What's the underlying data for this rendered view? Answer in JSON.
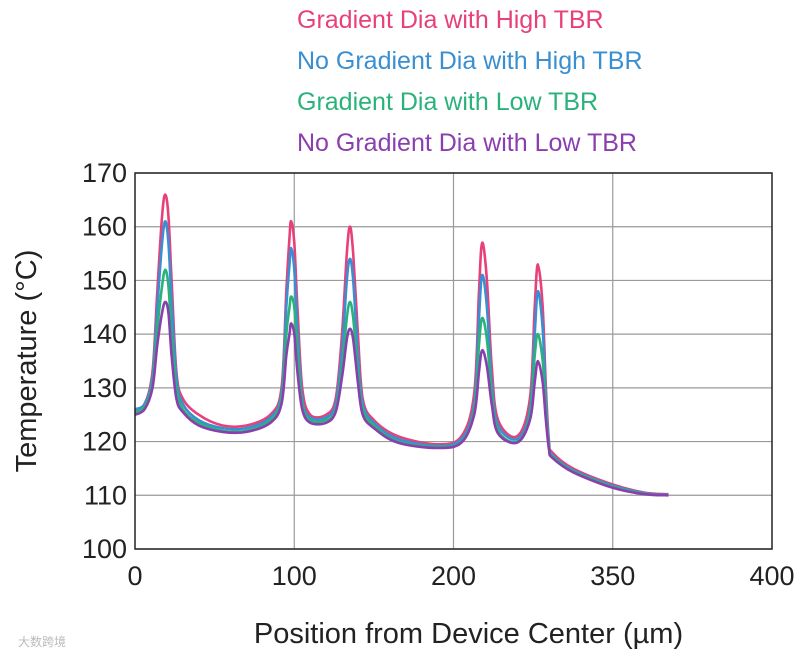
{
  "chart_data": {
    "type": "line",
    "xlabel": "Position from Device Center (µm)",
    "ylabel": "Temperature (°C)",
    "xlim": [
      0,
      400
    ],
    "ylim": [
      100,
      170
    ],
    "x_ticks": [
      0,
      100,
      200,
      350,
      400
    ],
    "y_ticks": [
      100,
      110,
      120,
      130,
      140,
      150,
      160,
      170
    ],
    "grid": true,
    "legend_position": "top",
    "watermark": "大数跨境",
    "series": [
      {
        "name": "Gradient Dia with High TBR",
        "color": "#e8407a",
        "points": [
          [
            0,
            126
          ],
          [
            6,
            127
          ],
          [
            11,
            133
          ],
          [
            14,
            148
          ],
          [
            17,
            162
          ],
          [
            19,
            166
          ],
          [
            21,
            162
          ],
          [
            23,
            150
          ],
          [
            26,
            133
          ],
          [
            30,
            128
          ],
          [
            40,
            125
          ],
          [
            55,
            123
          ],
          [
            70,
            123
          ],
          [
            85,
            125
          ],
          [
            92,
            130
          ],
          [
            95,
            148
          ],
          [
            97,
            158
          ],
          [
            98,
            161
          ],
          [
            100,
            157
          ],
          [
            102,
            145
          ],
          [
            105,
            130
          ],
          [
            110,
            125
          ],
          [
            120,
            125
          ],
          [
            126,
            128
          ],
          [
            130,
            140
          ],
          [
            133,
            155
          ],
          [
            135,
            160
          ],
          [
            137,
            155
          ],
          [
            140,
            140
          ],
          [
            143,
            128
          ],
          [
            150,
            124
          ],
          [
            165,
            121
          ],
          [
            190,
            119.5
          ],
          [
            205,
            121
          ],
          [
            213,
            129
          ],
          [
            216,
            148
          ],
          [
            218,
            157
          ],
          [
            221,
            150
          ],
          [
            224,
            134
          ],
          [
            228,
            124
          ],
          [
            240,
            121
          ],
          [
            248,
            128
          ],
          [
            251,
            145
          ],
          [
            253,
            153
          ],
          [
            256,
            145
          ],
          [
            258,
            130
          ],
          [
            260,
            120
          ],
          [
            262,
            118
          ],
          [
            275,
            115
          ],
          [
            300,
            112
          ],
          [
            320,
            110.5
          ],
          [
            335,
            110.2
          ]
        ]
      },
      {
        "name": "No Gradient Dia with High TBR",
        "color": "#3a8fd1",
        "points": [
          [
            0,
            126
          ],
          [
            6,
            127
          ],
          [
            11,
            132
          ],
          [
            14,
            145
          ],
          [
            17,
            157
          ],
          [
            19,
            161
          ],
          [
            21,
            157
          ],
          [
            23,
            146
          ],
          [
            26,
            132
          ],
          [
            30,
            127
          ],
          [
            40,
            124
          ],
          [
            55,
            122.5
          ],
          [
            70,
            122.5
          ],
          [
            85,
            124.5
          ],
          [
            92,
            129
          ],
          [
            95,
            145
          ],
          [
            97,
            153
          ],
          [
            98,
            156
          ],
          [
            100,
            152
          ],
          [
            102,
            141
          ],
          [
            105,
            128
          ],
          [
            110,
            124.5
          ],
          [
            120,
            124.5
          ],
          [
            126,
            127
          ],
          [
            130,
            137
          ],
          [
            133,
            150
          ],
          [
            135,
            154
          ],
          [
            137,
            150
          ],
          [
            140,
            136
          ],
          [
            143,
            127
          ],
          [
            150,
            123.5
          ],
          [
            165,
            120.5
          ],
          [
            190,
            119.2
          ],
          [
            205,
            120.5
          ],
          [
            213,
            127
          ],
          [
            216,
            143
          ],
          [
            218,
            151
          ],
          [
            221,
            145
          ],
          [
            224,
            131
          ],
          [
            228,
            123
          ],
          [
            240,
            120.5
          ],
          [
            248,
            126
          ],
          [
            251,
            140
          ],
          [
            253,
            148
          ],
          [
            256,
            141
          ],
          [
            258,
            128
          ],
          [
            260,
            119.5
          ],
          [
            262,
            117.5
          ],
          [
            275,
            114.7
          ],
          [
            300,
            111.8
          ],
          [
            320,
            110.4
          ],
          [
            335,
            110.1
          ]
        ]
      },
      {
        "name": "Gradient Dia with Low TBR",
        "color": "#2bb27c",
        "points": [
          [
            0,
            125.5
          ],
          [
            6,
            126.5
          ],
          [
            11,
            131
          ],
          [
            14,
            141
          ],
          [
            17,
            149
          ],
          [
            19,
            152
          ],
          [
            21,
            149
          ],
          [
            23,
            140
          ],
          [
            26,
            130
          ],
          [
            30,
            126
          ],
          [
            40,
            123.5
          ],
          [
            55,
            122
          ],
          [
            70,
            122
          ],
          [
            85,
            124
          ],
          [
            92,
            128
          ],
          [
            95,
            140
          ],
          [
            97,
            145
          ],
          [
            98,
            147
          ],
          [
            100,
            145
          ],
          [
            102,
            137
          ],
          [
            105,
            127
          ],
          [
            110,
            124
          ],
          [
            120,
            124
          ],
          [
            126,
            126
          ],
          [
            130,
            134
          ],
          [
            133,
            143
          ],
          [
            135,
            146
          ],
          [
            137,
            143
          ],
          [
            140,
            133
          ],
          [
            143,
            126
          ],
          [
            150,
            123
          ],
          [
            165,
            120
          ],
          [
            190,
            119
          ],
          [
            205,
            120
          ],
          [
            213,
            126
          ],
          [
            216,
            138
          ],
          [
            218,
            143
          ],
          [
            221,
            139
          ],
          [
            224,
            129
          ],
          [
            228,
            122
          ],
          [
            240,
            120
          ],
          [
            248,
            125
          ],
          [
            251,
            136
          ],
          [
            253,
            140
          ],
          [
            256,
            135
          ],
          [
            258,
            126
          ],
          [
            260,
            119
          ],
          [
            262,
            117.3
          ],
          [
            275,
            114.5
          ],
          [
            300,
            111.6
          ],
          [
            320,
            110.3
          ],
          [
            335,
            110
          ]
        ]
      },
      {
        "name": "No Gradient Dia with Low TBR",
        "color": "#8b3fae",
        "points": [
          [
            0,
            125
          ],
          [
            6,
            126
          ],
          [
            11,
            130
          ],
          [
            14,
            138
          ],
          [
            17,
            144
          ],
          [
            19,
            146
          ],
          [
            21,
            144
          ],
          [
            23,
            136
          ],
          [
            26,
            128
          ],
          [
            30,
            125.5
          ],
          [
            40,
            123
          ],
          [
            55,
            121.8
          ],
          [
            70,
            121.8
          ],
          [
            85,
            123.5
          ],
          [
            92,
            127
          ],
          [
            95,
            136
          ],
          [
            97,
            140
          ],
          [
            98,
            142
          ],
          [
            100,
            140
          ],
          [
            102,
            133
          ],
          [
            105,
            126
          ],
          [
            110,
            123.5
          ],
          [
            120,
            123.5
          ],
          [
            126,
            125.5
          ],
          [
            130,
            132
          ],
          [
            133,
            139
          ],
          [
            135,
            141
          ],
          [
            137,
            139
          ],
          [
            140,
            131
          ],
          [
            143,
            125
          ],
          [
            150,
            122.5
          ],
          [
            165,
            119.8
          ],
          [
            190,
            118.8
          ],
          [
            205,
            119.8
          ],
          [
            213,
            125
          ],
          [
            216,
            133
          ],
          [
            218,
            137
          ],
          [
            221,
            134
          ],
          [
            224,
            127
          ],
          [
            228,
            121.5
          ],
          [
            240,
            119.8
          ],
          [
            248,
            124
          ],
          [
            251,
            131
          ],
          [
            253,
            135
          ],
          [
            256,
            131
          ],
          [
            258,
            124
          ],
          [
            260,
            118.5
          ],
          [
            262,
            117
          ],
          [
            275,
            114.3
          ],
          [
            300,
            111.4
          ],
          [
            320,
            110.2
          ],
          [
            335,
            110
          ]
        ]
      }
    ]
  }
}
